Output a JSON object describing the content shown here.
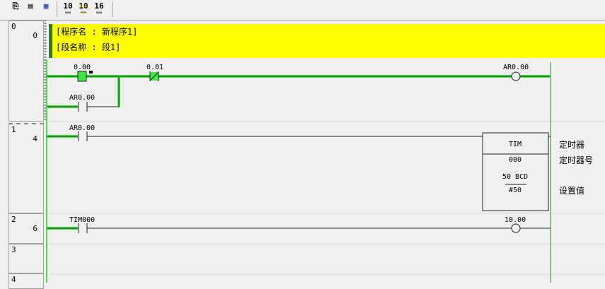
{
  "toolbar": {
    "buttons": [
      {
        "icon": "rung-comment-icon"
      },
      {
        "icon": "window-icon"
      },
      {
        "icon": "address-icon"
      },
      {
        "label": "10",
        "icon": "decimal-monitor-icon"
      },
      {
        "label": "10",
        "icon": "signed-decimal-monitor-icon"
      },
      {
        "label": "16",
        "icon": "hex-monitor-icon"
      }
    ]
  },
  "rungs": [
    {
      "rung": "0",
      "step": "0"
    },
    {
      "rung": "1",
      "step": "4"
    },
    {
      "rung": "2",
      "step": "6"
    },
    {
      "rung": "3",
      "step": ""
    },
    {
      "rung": "4",
      "step": ""
    }
  ],
  "comment": {
    "program": "[程序名 : 新程序1]",
    "section": "[段名称 : 段1]"
  },
  "rung0": {
    "contact1": "0.00",
    "contact2": "0.01",
    "branch_contact": "AR0.00",
    "coil": "AR0.00"
  },
  "rung1": {
    "contact": "AR0.00",
    "instruction": "TIM",
    "operand1": "000",
    "operand2_top": "50 BCD",
    "operand2": "#50",
    "comment1": "定时器",
    "comment2": "定时器号",
    "comment3": "设置值"
  },
  "rung2": {
    "contact": "TIM000",
    "coil": "10.00"
  },
  "colors": {
    "power_flow": "#3ee83e",
    "comment_bg": "#ffff00",
    "rail": "#2f8f2f"
  }
}
